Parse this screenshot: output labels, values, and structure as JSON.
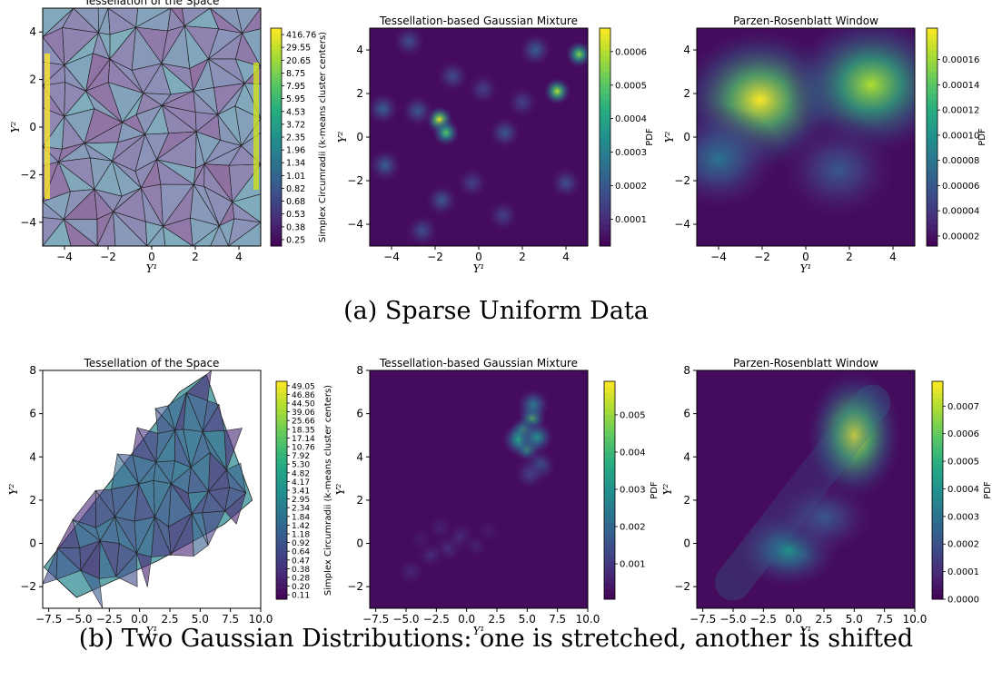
{
  "captions": {
    "a": "(a) Sparse Uniform Data",
    "b": "(b) Two Gaussian Distributions: one is stretched, another is shifted"
  },
  "colors": {
    "viridis": [
      "#440154",
      "#472c7a",
      "#3b518b",
      "#2c718e",
      "#21908d",
      "#27ad81",
      "#5cc863",
      "#aadc32",
      "#fde725"
    ]
  },
  "chart_data": [
    {
      "type": "heatmap",
      "title": "Tessellation of the Space",
      "xlabel": "Y¹",
      "ylabel": "Y²",
      "xlim": [
        -5,
        5
      ],
      "ylim": [
        -5,
        5
      ],
      "xticks": [
        "−4",
        "−2",
        "0",
        "2",
        "4"
      ],
      "xtick_values": [
        -4,
        -2,
        0,
        2,
        4
      ],
      "yticks": [
        "−4",
        "−2",
        "0",
        "2",
        "4"
      ],
      "ytick_values": [
        -4,
        -2,
        0,
        2,
        4
      ],
      "colorbar": {
        "label": "Simplex Circumradii (k-means cluster centers)",
        "ticks": [
          "0.25",
          "0.38",
          "0.53",
          "0.68",
          "0.82",
          "1.01",
          "1.34",
          "1.96",
          "2.35",
          "3.72",
          "4.53",
          "5.95",
          "7.95",
          "8.75",
          "20.65",
          "29.55",
          "416.76"
        ]
      }
    },
    {
      "type": "heatmap",
      "title": "Tessellation-based Gaussian Mixture",
      "xlabel": "Y¹",
      "ylabel": "Y²",
      "xlim": [
        -5,
        5
      ],
      "ylim": [
        -5,
        5
      ],
      "xticks": [
        "−4",
        "−2",
        "0",
        "2",
        "4"
      ],
      "xtick_values": [
        -4,
        -2,
        0,
        2,
        4
      ],
      "yticks": [
        "−4",
        "−2",
        "0",
        "2",
        "4"
      ],
      "ytick_values": [
        -4,
        -2,
        0,
        2,
        4
      ],
      "peaks": [
        {
          "x": -1.8,
          "y": 0.8,
          "value": 0.00065
        },
        {
          "x": -1.5,
          "y": 0.2,
          "value": 0.0005
        },
        {
          "x": 3.6,
          "y": 2.1,
          "value": 0.0006
        },
        {
          "x": 4.6,
          "y": 3.8,
          "value": 0.00055
        },
        {
          "x": -2.8,
          "y": 1.2,
          "value": 0.0002
        },
        {
          "x": -4.4,
          "y": 1.3,
          "value": 0.00022
        },
        {
          "x": -4.3,
          "y": -1.3,
          "value": 0.00022
        },
        {
          "x": -1.7,
          "y": -2.9,
          "value": 0.0002
        },
        {
          "x": -1.2,
          "y": 2.8,
          "value": 0.00018
        },
        {
          "x": 2.6,
          "y": 4.0,
          "value": 0.00022
        },
        {
          "x": 1.2,
          "y": 0.2,
          "value": 0.0002
        },
        {
          "x": 4.0,
          "y": -2.1,
          "value": 0.00018
        },
        {
          "x": -2.6,
          "y": -4.3,
          "value": 0.00018
        },
        {
          "x": -0.3,
          "y": -2.1,
          "value": 0.00015
        },
        {
          "x": 1.1,
          "y": -3.6,
          "value": 0.00015
        },
        {
          "x": 0.2,
          "y": 2.2,
          "value": 0.00015
        },
        {
          "x": -3.2,
          "y": 4.4,
          "value": 0.00018
        },
        {
          "x": 2.0,
          "y": 1.6,
          "value": 0.00015
        }
      ],
      "colorbar": {
        "label": "PDF",
        "ticks": [
          "0.0001",
          "0.0002",
          "0.0003",
          "0.0004",
          "0.0005",
          "0.0006"
        ],
        "tick_values": [
          0.0001,
          0.0002,
          0.0003,
          0.0004,
          0.0005,
          0.0006
        ],
        "range": [
          2e-05,
          0.00067
        ]
      }
    },
    {
      "type": "heatmap",
      "title": "Parzen-Rosenblatt Window",
      "xlabel": "Y¹",
      "ylabel": "Y²",
      "xlim": [
        -5,
        5
      ],
      "ylim": [
        -5,
        5
      ],
      "xticks": [
        "−4",
        "−2",
        "0",
        "2",
        "4"
      ],
      "xtick_values": [
        -4,
        -2,
        0,
        2,
        4
      ],
      "yticks": [
        "−4",
        "−2",
        "0",
        "2",
        "4"
      ],
      "ytick_values": [
        -4,
        -2,
        0,
        2,
        4
      ],
      "peaks": [
        {
          "x": -2.1,
          "y": 1.7,
          "value": 0.000185
        },
        {
          "x": 3.0,
          "y": 2.4,
          "value": 0.000165
        },
        {
          "x": -4.0,
          "y": -1.0,
          "value": 8e-05
        },
        {
          "x": 1.5,
          "y": -1.5,
          "value": 6e-05
        }
      ],
      "colorbar": {
        "label": "PDF",
        "ticks": [
          "0.00002",
          "0.00004",
          "0.00006",
          "0.00008",
          "0.00010",
          "0.00012",
          "0.00014",
          "0.00016"
        ],
        "tick_values": [
          2e-05,
          4e-05,
          6e-05,
          8e-05,
          0.0001,
          0.00012,
          0.00014,
          0.00016
        ],
        "range": [
          1.2e-05,
          0.000185
        ]
      }
    },
    {
      "type": "heatmap",
      "title": "Tessellation of the Space",
      "xlabel": "Y¹",
      "ylabel": "Y²",
      "xlim": [
        -8,
        10
      ],
      "ylim": [
        -3,
        8
      ],
      "xticks": [
        "−7.5",
        "−5.0",
        "−2.5",
        "0.0",
        "2.5",
        "5.0",
        "7.5",
        "10.0"
      ],
      "xtick_values": [
        -7.5,
        -5,
        -2.5,
        0,
        2.5,
        5,
        7.5,
        10
      ],
      "yticks": [
        "−2",
        "0",
        "2",
        "4",
        "6",
        "8"
      ],
      "ytick_values": [
        -2,
        0,
        2,
        4,
        6,
        8
      ],
      "hull": [
        [
          -7.9,
          -1.1
        ],
        [
          -5.2,
          -2.5
        ],
        [
          1.5,
          -0.8
        ],
        [
          7.0,
          0.9
        ],
        [
          9.3,
          2.0
        ],
        [
          7.0,
          5.5
        ],
        [
          5.5,
          7.8
        ],
        [
          3.3,
          7.0
        ]
      ],
      "colorbar": {
        "label": "Simplex Circumradii (k-means cluster centers)",
        "ticks": [
          "0.11",
          "0.20",
          "0.28",
          "0.38",
          "0.47",
          "0.64",
          "0.92",
          "1.18",
          "1.42",
          "1.84",
          "2.34",
          "2.95",
          "3.41",
          "4.17",
          "4.82",
          "5.30",
          "7.92",
          "10.76",
          "17.14",
          "18.35",
          "25.66",
          "39.06",
          "44.50",
          "46.86",
          "49.05"
        ]
      }
    },
    {
      "type": "heatmap",
      "title": "Tessellation-based Gaussian Mixture",
      "xlabel": "Y¹",
      "ylabel": "Y²",
      "xlim": [
        -8,
        10
      ],
      "ylim": [
        -3,
        8
      ],
      "xticks": [
        "−7.5",
        "−5.0",
        "−2.5",
        "0.0",
        "2.5",
        "5.0",
        "7.5",
        "10.0"
      ],
      "xtick_values": [
        -7.5,
        -5,
        -2.5,
        0,
        2.5,
        5,
        7.5,
        10
      ],
      "yticks": [
        "−2",
        "0",
        "2",
        "4",
        "6",
        "8"
      ],
      "ytick_values": [
        -2,
        0,
        2,
        4,
        6,
        8
      ],
      "peaks": [
        {
          "x": 5.4,
          "y": 5.8,
          "value": 0.0045
        },
        {
          "x": 4.7,
          "y": 5.2,
          "value": 0.0042
        },
        {
          "x": 5.0,
          "y": 4.4,
          "value": 0.004
        },
        {
          "x": 4.3,
          "y": 4.8,
          "value": 0.0035
        },
        {
          "x": 5.8,
          "y": 4.9,
          "value": 0.003
        },
        {
          "x": 5.5,
          "y": 6.4,
          "value": 0.0025
        },
        {
          "x": 6.0,
          "y": 3.6,
          "value": 0.0018
        },
        {
          "x": 5.2,
          "y": 3.2,
          "value": 0.0012
        },
        {
          "x": -1.5,
          "y": -0.2,
          "value": 0.0009
        },
        {
          "x": -3.0,
          "y": -0.5,
          "value": 0.0008
        },
        {
          "x": -0.5,
          "y": 0.3,
          "value": 0.0008
        },
        {
          "x": -4.6,
          "y": -1.3,
          "value": 0.0007
        },
        {
          "x": 0.8,
          "y": -0.1,
          "value": 0.0006
        },
        {
          "x": -2.2,
          "y": 0.7,
          "value": 0.0006
        },
        {
          "x": -3.8,
          "y": 0.2,
          "value": 0.0005
        },
        {
          "x": 1.8,
          "y": 0.6,
          "value": 0.0005
        }
      ],
      "colorbar": {
        "label": "PDF",
        "ticks": [
          "0.001",
          "0.002",
          "0.003",
          "0.004",
          "0.005"
        ],
        "tick_values": [
          0.001,
          0.002,
          0.003,
          0.004,
          0.005
        ],
        "range": [
          5e-05,
          0.0059
        ]
      }
    },
    {
      "type": "heatmap",
      "title": "Parzen-Rosenblatt Window",
      "xlabel": "Y¹",
      "ylabel": "Y²",
      "xlim": [
        -8,
        10
      ],
      "ylim": [
        -3,
        8
      ],
      "xticks": [
        "−7.5",
        "−5.0",
        "−2.5",
        "0.0",
        "2.5",
        "5.0",
        "7.5",
        "10.0"
      ],
      "xtick_values": [
        -7.5,
        -5,
        -2.5,
        0,
        2.5,
        5,
        7.5,
        10
      ],
      "yticks": [
        "−2",
        "0",
        "2",
        "4",
        "6",
        "8"
      ],
      "ytick_values": [
        -2,
        0,
        2,
        4,
        6,
        8
      ],
      "peaks": [
        {
          "x": 5.0,
          "y": 5.0,
          "value": 0.00078
        },
        {
          "x": -0.4,
          "y": -0.3,
          "value": 0.0004
        },
        {
          "x": 2.5,
          "y": 1.2,
          "value": 0.00022
        }
      ],
      "colorbar": {
        "label": "PDF",
        "ticks": [
          "0.0000",
          "0.0001",
          "0.0002",
          "0.0003",
          "0.0004",
          "0.0005",
          "0.0006",
          "0.0007"
        ],
        "tick_values": [
          0,
          0.0001,
          0.0002,
          0.0003,
          0.0004,
          0.0005,
          0.0006,
          0.0007
        ],
        "range": [
          0,
          0.00079
        ]
      }
    }
  ]
}
